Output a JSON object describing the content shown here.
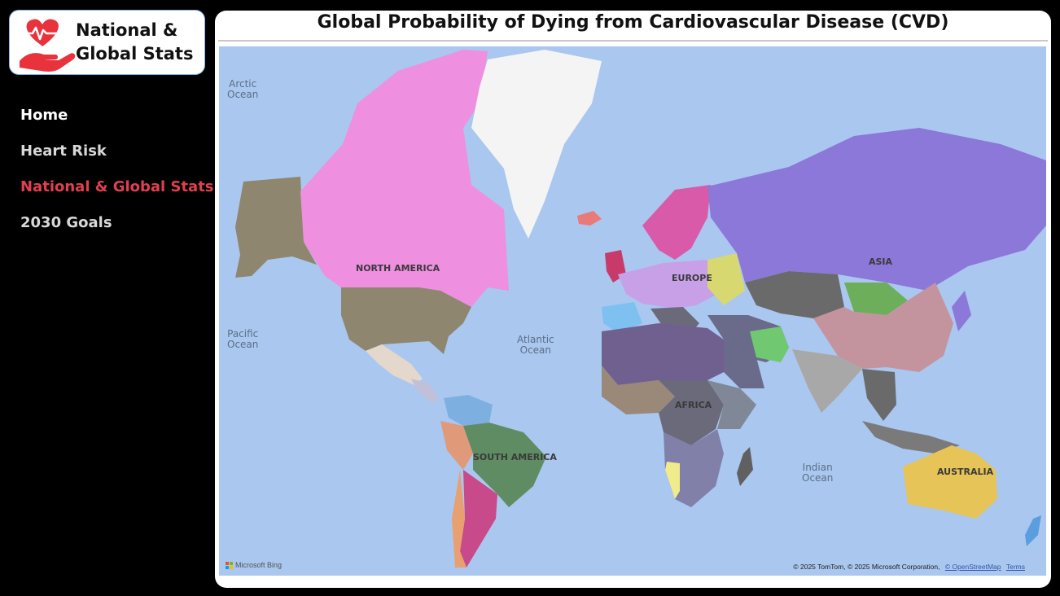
{
  "logo": {
    "line1": "National &",
    "line2": "Global Stats",
    "icon": "heart-in-hand-icon",
    "color": "#e8323c"
  },
  "nav": {
    "items": [
      {
        "label": "Home"
      },
      {
        "label": "Heart Risk"
      },
      {
        "label": "National & Global Stats"
      },
      {
        "label": "2030 Goals"
      }
    ]
  },
  "page": {
    "title": "Global Probability of Dying from Cardiovascular Disease (CVD)"
  },
  "map": {
    "ocean_labels": {
      "arctic": "Arctic\nOcean",
      "pacific": "Pacific\nOcean",
      "atlantic": "Atlantic\nOcean",
      "indian": "Indian\nOcean"
    },
    "continent_labels": {
      "north_america": "NORTH AMERICA",
      "europe": "EUROPE",
      "asia": "ASIA",
      "africa": "AFRICA",
      "south_america": "SOUTH AMERICA",
      "australia": "AUSTRALIA"
    },
    "bing_label": "Microsoft Bing",
    "attribution": "© 2025 TomTom, © 2025 Microsoft Corporation,",
    "osm_link": "© OpenStreetMap",
    "terms_link": "Terms",
    "colors": {
      "ocean": "#aac7ef",
      "greenland": "#f4f4f4",
      "canada": "#ee8fe0",
      "usa": "#8f8670",
      "asia_russia": "#8b78d8",
      "china": "#c4949e",
      "australia": "#e6c457",
      "brazil": "#5f8c62",
      "accent_nav": "#e0404e"
    }
  }
}
